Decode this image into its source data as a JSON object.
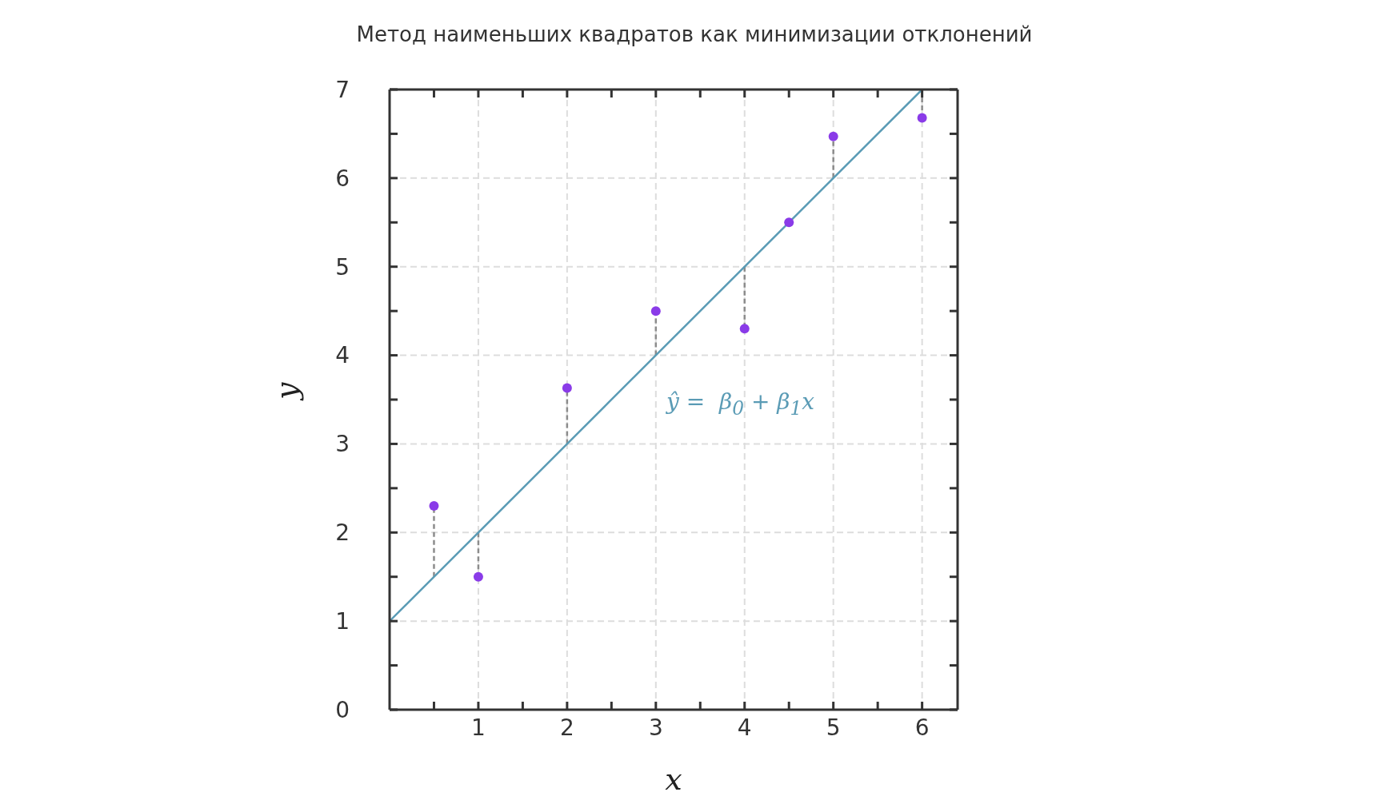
{
  "chart_data": {
    "type": "scatter",
    "title": "Метод наименьших квадратов как минимизации отклонений",
    "xlabel": "x",
    "ylabel": "y",
    "xlim": [
      0,
      6.4
    ],
    "ylim": [
      0,
      7
    ],
    "xticks": [
      {
        "value": 0.5,
        "label": null
      },
      1,
      {
        "value": 1.5,
        "label": null
      },
      2,
      {
        "value": 2.5,
        "label": null
      },
      3,
      {
        "value": 3.5,
        "label": null
      },
      4,
      {
        "value": 4.5,
        "label": null
      },
      5,
      {
        "value": 5.5,
        "label": null
      },
      6
    ],
    "yticks": [
      0,
      {
        "value": 0.5,
        "label": null
      },
      1,
      {
        "value": 1.5,
        "label": null
      },
      2,
      {
        "value": 2.5,
        "label": null
      },
      3,
      {
        "value": 3.5,
        "label": null
      },
      4,
      {
        "value": 4.5,
        "label": null
      },
      5,
      {
        "value": 5.5,
        "label": null
      },
      6,
      {
        "value": 6.5,
        "label": null
      },
      7
    ],
    "grid": true,
    "marker": "circle",
    "annotations": [
      "ŷ =  β$_{0}$ + β$_{1}$x"
    ],
    "series": [
      {
        "type": "line",
        "color": "#8c8c8c",
        "line_style": "dashed",
        "marker": "none",
        "x": [
          0.5,
          0.5
        ],
        "values": [
          1.5,
          2.3
        ]
      },
      {
        "type": "line",
        "color": "#8c8c8c",
        "line_style": "dashed",
        "marker": "none",
        "x": [
          1,
          1
        ],
        "values": [
          2,
          1.5
        ]
      },
      {
        "type": "line",
        "color": "#8c8c8c",
        "line_style": "dashed",
        "marker": "none",
        "x": [
          2,
          2
        ],
        "values": [
          3,
          3.63
        ]
      },
      {
        "type": "line",
        "color": "#8c8c8c",
        "line_style": "dashed",
        "marker": "none",
        "x": [
          3,
          3
        ],
        "values": [
          4,
          4.5
        ]
      },
      {
        "type": "line",
        "color": "#8c8c8c",
        "line_style": "dashed",
        "marker": "none",
        "x": [
          4,
          4
        ],
        "values": [
          5,
          4.3
        ]
      },
      {
        "type": "line",
        "color": "#8c8c8c",
        "line_style": "dashed",
        "marker": "none",
        "x": [
          5,
          5
        ],
        "values": [
          6,
          6.47
        ]
      },
      {
        "type": "line",
        "color": "#8c8c8c",
        "line_style": "dashed",
        "marker": "none",
        "x": [
          6,
          6
        ],
        "values": [
          7,
          6.68
        ]
      },
      {
        "type": "line",
        "color": "#5a9bb5",
        "line_style": "solid",
        "marker": "none",
        "x": [
          0,
          6
        ],
        "values": [
          1,
          7
        ]
      },
      {
        "color": "#8a3be8",
        "x": [
          0.5,
          1,
          2,
          3,
          4,
          4.5,
          5,
          6
        ],
        "values": [
          2.3,
          1.5,
          3.63,
          4.5,
          4.3,
          5.5,
          6.47,
          6.68
        ]
      }
    ]
  }
}
